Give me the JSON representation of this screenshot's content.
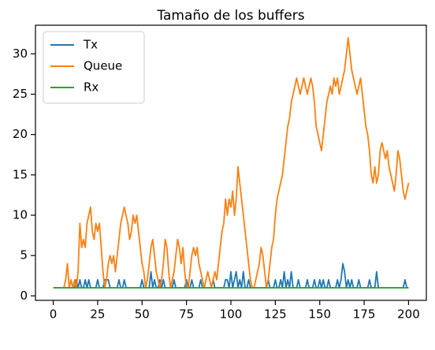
{
  "chart_data": {
    "type": "line",
    "title": "Tamaño de los buffers",
    "x": [
      0,
      1,
      2,
      3,
      4,
      5,
      6,
      7,
      8,
      9,
      10,
      11,
      12,
      13,
      14,
      15,
      16,
      17,
      18,
      19,
      20,
      21,
      22,
      23,
      24,
      25,
      26,
      27,
      28,
      29,
      30,
      31,
      32,
      33,
      34,
      35,
      36,
      37,
      38,
      39,
      40,
      41,
      42,
      43,
      44,
      45,
      46,
      47,
      48,
      49,
      50,
      51,
      52,
      53,
      54,
      55,
      56,
      57,
      58,
      59,
      60,
      61,
      62,
      63,
      64,
      65,
      66,
      67,
      68,
      69,
      70,
      71,
      72,
      73,
      74,
      75,
      76,
      77,
      78,
      79,
      80,
      81,
      82,
      83,
      84,
      85,
      86,
      87,
      88,
      89,
      90,
      91,
      92,
      93,
      94,
      95,
      96,
      97,
      98,
      99,
      100,
      101,
      102,
      103,
      104,
      105,
      106,
      107,
      108,
      109,
      110,
      111,
      112,
      113,
      114,
      115,
      116,
      117,
      118,
      119,
      120,
      121,
      122,
      123,
      124,
      125,
      126,
      127,
      128,
      129,
      130,
      131,
      132,
      133,
      134,
      135,
      136,
      137,
      138,
      139,
      140,
      141,
      142,
      143,
      144,
      145,
      146,
      147,
      148,
      149,
      150,
      151,
      152,
      153,
      154,
      155,
      156,
      157,
      158,
      159,
      160,
      161,
      162,
      163,
      164,
      165,
      166,
      167,
      168,
      169,
      170,
      171,
      172,
      173,
      174,
      175,
      176,
      177,
      178,
      179,
      180,
      181,
      182,
      183,
      184,
      185,
      186,
      187,
      188,
      189,
      190,
      191,
      192,
      193,
      194,
      195,
      196,
      197,
      198,
      199,
      200
    ],
    "series": [
      {
        "name": "Tx",
        "color": "#1f77b4",
        "values": [
          1,
          1,
          1,
          1,
          1,
          1,
          1,
          1,
          1,
          1,
          1,
          1,
          1,
          2,
          1,
          2,
          1,
          1,
          2,
          1,
          2,
          1,
          1,
          1,
          1,
          2,
          1,
          1,
          1,
          2,
          2,
          2,
          1,
          1,
          1,
          1,
          1,
          2,
          1,
          1,
          2,
          1,
          1,
          1,
          1,
          1,
          1,
          1,
          1,
          1,
          2,
          1,
          1,
          1,
          1,
          3,
          1,
          2,
          1,
          1,
          2,
          1,
          2,
          1,
          1,
          1,
          1,
          1,
          2,
          1,
          1,
          1,
          1,
          1,
          1,
          2,
          1,
          1,
          2,
          1,
          1,
          1,
          1,
          2,
          1,
          1,
          1,
          1,
          1,
          1,
          2,
          1,
          1,
          1,
          1,
          1,
          1,
          2,
          2,
          1,
          3,
          1,
          2,
          3,
          1,
          2,
          1,
          3,
          1,
          1,
          2,
          1,
          1,
          1,
          1,
          1,
          1,
          1,
          1,
          1,
          1,
          2,
          1,
          1,
          1,
          2,
          1,
          1,
          2,
          1,
          3,
          1,
          2,
          1,
          3,
          1,
          1,
          1,
          2,
          1,
          1,
          1,
          1,
          2,
          1,
          1,
          1,
          2,
          1,
          1,
          2,
          1,
          2,
          1,
          1,
          2,
          1,
          1,
          1,
          1,
          2,
          1,
          2,
          4,
          3,
          1,
          2,
          1,
          2,
          1,
          1,
          1,
          2,
          1,
          1,
          1,
          1,
          1,
          2,
          1,
          1,
          1,
          3,
          1,
          1,
          1,
          1,
          1,
          1,
          1,
          1,
          1,
          1,
          1,
          1,
          1,
          1,
          1,
          2,
          1,
          1
        ]
      },
      {
        "name": "Queue",
        "color": "#ff7f0e",
        "values": [
          1,
          1,
          1,
          1,
          1,
          1,
          1,
          2,
          4,
          1,
          2,
          1,
          2,
          1,
          3,
          9,
          6,
          7,
          6,
          9,
          10,
          11,
          8,
          7,
          9,
          8,
          9,
          6,
          3,
          1,
          2,
          4,
          5,
          4,
          5,
          3,
          5,
          7,
          9,
          10,
          11,
          10,
          9,
          7,
          8,
          10,
          9,
          10,
          8,
          6,
          4,
          3,
          1,
          2,
          4,
          6,
          7,
          5,
          3,
          2,
          1,
          2,
          4,
          7,
          6,
          3,
          1,
          2,
          3,
          5,
          7,
          6,
          4,
          6,
          3,
          1,
          1,
          3,
          5,
          6,
          5,
          6,
          4,
          3,
          2,
          1,
          2,
          3,
          2,
          1,
          2,
          3,
          2,
          4,
          6,
          8,
          9,
          12,
          10,
          12,
          11,
          13,
          10,
          12,
          16,
          14,
          12,
          10,
          8,
          6,
          4,
          2,
          1,
          1,
          2,
          3,
          4,
          6,
          5,
          3,
          1,
          2,
          4,
          6,
          7,
          10,
          12,
          13,
          14,
          15,
          17,
          19,
          21,
          22,
          24,
          25,
          26,
          27,
          26,
          25,
          26,
          27,
          26,
          25,
          26,
          27,
          26,
          24,
          21,
          20,
          19,
          18,
          20,
          22,
          24,
          25,
          26,
          25,
          27,
          26,
          27,
          25,
          26,
          27,
          28,
          30,
          32,
          30,
          28,
          27,
          26,
          25,
          26,
          27,
          25,
          23,
          21,
          20,
          18,
          15,
          14,
          16,
          14,
          15,
          18,
          19,
          18,
          17,
          18,
          16,
          15,
          14,
          13,
          15,
          18,
          17,
          15,
          13,
          12,
          13,
          14
        ]
      },
      {
        "name": "Rx",
        "color": "#2ca02c",
        "values": [
          1,
          1,
          1,
          1,
          1,
          1,
          1,
          1,
          1,
          1,
          1,
          1,
          1,
          1,
          1,
          1,
          1,
          1,
          1,
          1,
          1,
          1,
          1,
          1,
          1,
          1,
          1,
          1,
          1,
          1,
          1,
          1,
          1,
          1,
          1,
          1,
          1,
          1,
          1,
          1,
          1,
          1,
          1,
          1,
          1,
          1,
          1,
          1,
          1,
          1,
          1,
          1,
          1,
          1,
          1,
          1,
          1,
          1,
          1,
          1,
          1,
          1,
          1,
          1,
          1,
          1,
          1,
          1,
          1,
          1,
          1,
          1,
          1,
          1,
          1,
          1,
          1,
          1,
          1,
          1,
          1,
          1,
          1,
          1,
          1,
          1,
          1,
          1,
          1,
          1,
          1,
          1,
          1,
          1,
          1,
          1,
          1,
          1,
          1,
          1,
          1,
          1,
          1,
          1,
          1,
          1,
          1,
          1,
          1,
          1,
          1,
          1,
          1,
          1,
          1,
          1,
          1,
          1,
          1,
          1,
          1,
          1,
          1,
          1,
          1,
          1,
          1,
          1,
          1,
          1,
          1,
          1,
          1,
          1,
          1,
          1,
          1,
          1,
          1,
          1,
          1,
          1,
          1,
          1,
          1,
          1,
          1,
          1,
          1,
          1,
          1,
          1,
          1,
          1,
          1,
          1,
          1,
          1,
          1,
          1,
          1,
          1,
          1,
          1,
          1,
          1,
          1,
          1,
          1,
          1,
          1,
          1,
          1,
          1,
          1,
          1,
          1,
          1,
          1,
          1,
          1,
          1,
          1,
          1,
          1,
          1,
          1,
          1,
          1,
          1,
          1,
          1,
          1,
          1,
          1,
          1,
          1,
          1,
          1,
          1,
          1
        ]
      }
    ],
    "xlim": [
      -10,
      210
    ],
    "ylim": [
      -0.55,
      33.55
    ],
    "xticks": [
      0,
      25,
      50,
      75,
      100,
      125,
      150,
      175,
      200
    ],
    "yticks": [
      0,
      5,
      10,
      15,
      20,
      25,
      30
    ],
    "legend": "upper left"
  }
}
